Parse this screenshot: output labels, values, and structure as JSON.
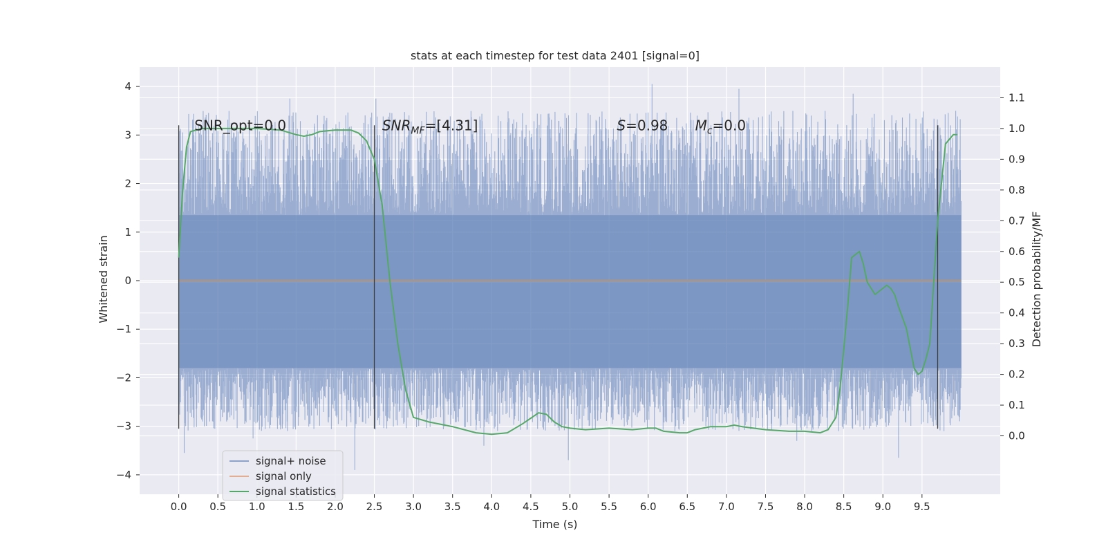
{
  "chart_data": {
    "type": "line",
    "title": "stats at each timestep for test data 2401 [signal=0]",
    "xlabel": "Time (s)",
    "ylabel": "Whitened strain",
    "y2label": "Detection probability/MF",
    "xlim": [
      -0.5,
      10.5
    ],
    "ylim": [
      -4.4,
      4.4
    ],
    "y2lim": [
      -0.19,
      1.2
    ],
    "xticks": [
      "0.0",
      "0.5",
      "1.0",
      "1.5",
      "2.0",
      "2.5",
      "3.0",
      "3.5",
      "4.0",
      "4.5",
      "5.0",
      "5.5",
      "6.0",
      "6.5",
      "7.0",
      "7.5",
      "8.0",
      "8.5",
      "9.0",
      "9.5"
    ],
    "yticks": [
      "4",
      "3",
      "2",
      "1",
      "0",
      "−1",
      "−2",
      "−3",
      "−4"
    ],
    "y2ticks": [
      "1.1",
      "1.0",
      "0.9",
      "0.8",
      "0.7",
      "0.6",
      "0.5",
      "0.4",
      "0.3",
      "0.2",
      "0.1",
      "0.0"
    ],
    "grid": true,
    "legend_position": "lower-left",
    "annotations": [
      {
        "text": "SNR_opt=0.0",
        "x": 0.2,
        "y": 3.1
      },
      {
        "text": "SNR",
        "sub": "MF",
        "suffix": "=[4.31]",
        "x": 2.6,
        "y": 3.1
      },
      {
        "text": "S",
        "suffix": "=0.98",
        "x": 5.6,
        "y": 3.1
      },
      {
        "text": "M",
        "sub": "c",
        "suffix": "=0.0",
        "x": 6.6,
        "y": 3.1
      }
    ],
    "vlines": [
      0.0,
      2.5,
      9.7
    ],
    "vline_span": [
      -3.05,
      3.2
    ],
    "series": [
      {
        "name": "signal+ noise",
        "color": "#4c72b0",
        "kind": "noise",
        "x_range": [
          0.0,
          10.0
        ],
        "core_band": [
          -1.8,
          1.35
        ],
        "typical_peak": [
          -3.1,
          3.5
        ],
        "extremes": [
          {
            "x": 0.07,
            "y": -3.55
          },
          {
            "x": 1.42,
            "y": 3.75
          },
          {
            "x": 2.25,
            "y": -3.9
          },
          {
            "x": 2.52,
            "y": 3.75
          },
          {
            "x": 4.98,
            "y": -3.7
          },
          {
            "x": 6.05,
            "y": 4.05
          },
          {
            "x": 7.16,
            "y": 3.95
          },
          {
            "x": 8.62,
            "y": 3.85
          },
          {
            "x": 9.2,
            "y": -3.65
          },
          {
            "x": 0.95,
            "y": -3.25
          },
          {
            "x": 3.9,
            "y": -3.4
          },
          {
            "x": 7.9,
            "y": -3.3
          }
        ]
      },
      {
        "name": "signal only",
        "color": "#dd8452",
        "kind": "flat",
        "x": [
          0.0,
          10.0
        ],
        "y": [
          0.0,
          0.0
        ]
      },
      {
        "name": "signal statistics",
        "color": "#55a868",
        "axis": "right",
        "x": [
          0.0,
          0.05,
          0.1,
          0.15,
          0.3,
          0.5,
          1.0,
          1.3,
          1.5,
          1.6,
          1.7,
          1.8,
          2.0,
          2.2,
          2.3,
          2.4,
          2.5,
          2.6,
          2.7,
          2.8,
          2.9,
          3.0,
          3.2,
          3.5,
          3.8,
          4.0,
          4.2,
          4.4,
          4.6,
          4.7,
          4.8,
          4.9,
          5.0,
          5.2,
          5.5,
          5.8,
          6.0,
          6.1,
          6.2,
          6.4,
          6.5,
          6.6,
          6.8,
          7.0,
          7.1,
          7.2,
          7.5,
          7.8,
          8.0,
          8.2,
          8.3,
          8.4,
          8.45,
          8.5,
          8.55,
          8.6,
          8.65,
          8.7,
          8.75,
          8.8,
          8.9,
          9.0,
          9.05,
          9.1,
          9.15,
          9.2,
          9.3,
          9.4,
          9.45,
          9.5,
          9.55,
          9.6,
          9.7,
          9.8,
          9.9,
          9.95
        ],
        "y": [
          0.58,
          0.8,
          0.94,
          0.99,
          1.0,
          1.0,
          1.0,
          0.995,
          0.98,
          0.975,
          0.98,
          0.99,
          0.995,
          0.995,
          0.985,
          0.96,
          0.9,
          0.75,
          0.5,
          0.3,
          0.15,
          0.06,
          0.045,
          0.03,
          0.01,
          0.005,
          0.01,
          0.04,
          0.075,
          0.07,
          0.045,
          0.03,
          0.025,
          0.02,
          0.025,
          0.02,
          0.025,
          0.025,
          0.015,
          0.01,
          0.01,
          0.02,
          0.03,
          0.03,
          0.035,
          0.03,
          0.02,
          0.015,
          0.015,
          0.01,
          0.02,
          0.06,
          0.15,
          0.28,
          0.42,
          0.58,
          0.59,
          0.6,
          0.56,
          0.5,
          0.46,
          0.48,
          0.49,
          0.48,
          0.46,
          0.42,
          0.35,
          0.22,
          0.2,
          0.21,
          0.25,
          0.3,
          0.7,
          0.95,
          0.98,
          0.98
        ]
      }
    ]
  },
  "colors": {
    "axes_bg": "#eaeaf2",
    "grid": "#ffffff",
    "vline": "#3a3a3a",
    "noise": "#4c72b0",
    "signal": "#dd8452",
    "stats": "#55a868"
  }
}
